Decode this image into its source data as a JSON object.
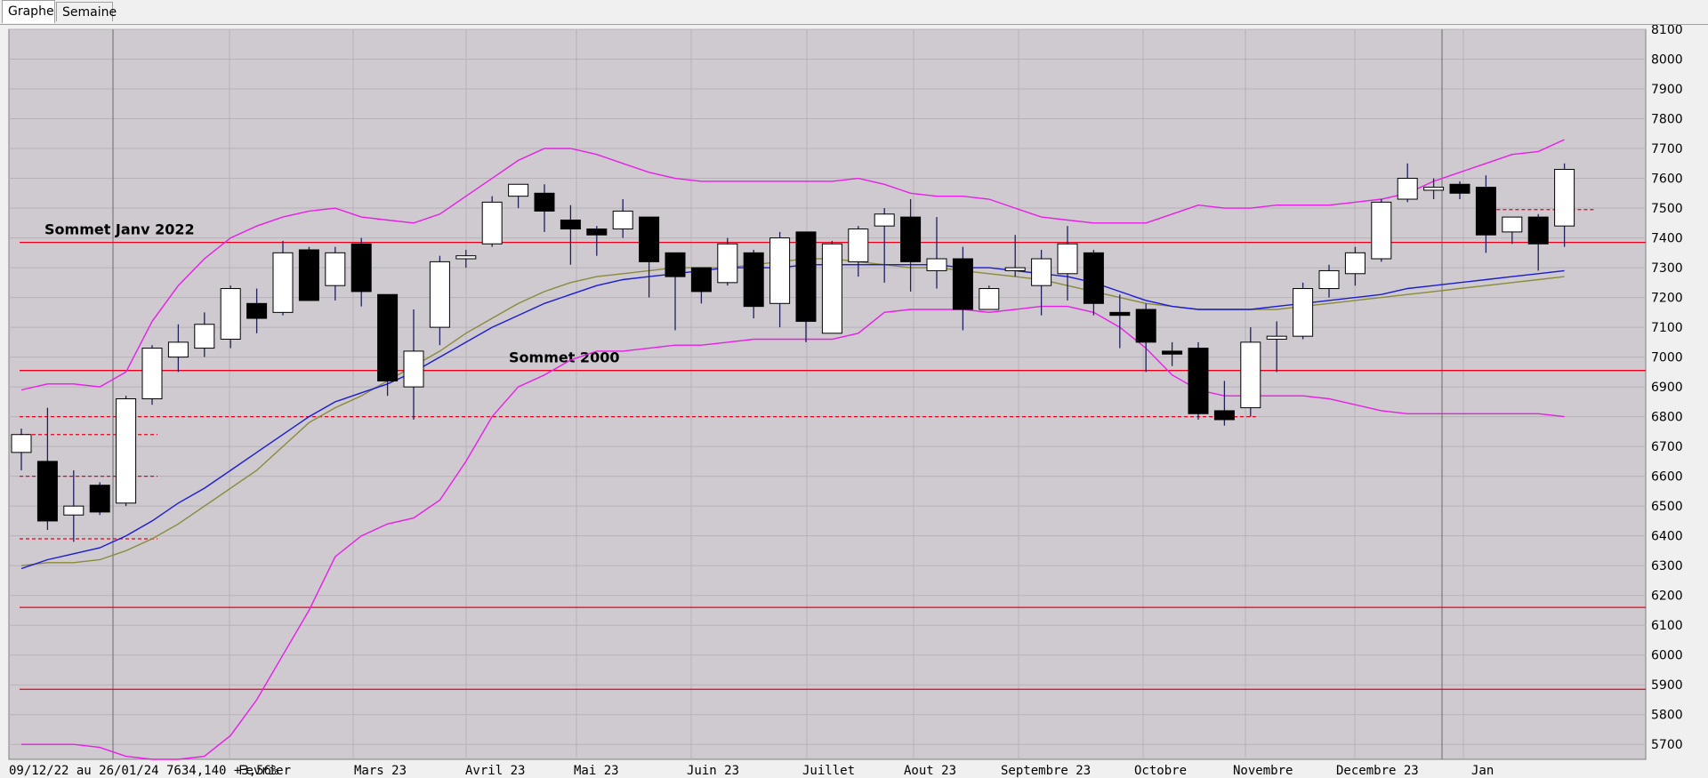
{
  "tabs": [
    {
      "label": "Graphe",
      "active": true
    },
    {
      "label": "Semaine",
      "active": false
    }
  ],
  "footer": {
    "range": "09/12/22 au 26/01/24",
    "last": "7634,140",
    "change": "+3,56%"
  },
  "colors": {
    "background": "#cfcad0",
    "grid": "#b6b2b8",
    "up_candle": "#ffffff",
    "down_candle": "#000000",
    "horizontal_line": "#e8001c",
    "bollinger": "#e81ee8",
    "ma_blue": "#1a1ad8",
    "ma_olive": "#8a8a3a"
  },
  "chart_data": {
    "type": "candlestick",
    "title": "",
    "ylim": [
      5650,
      8100
    ],
    "y_ticks": [
      5700,
      5800,
      5900,
      6000,
      6100,
      6200,
      6300,
      6400,
      6500,
      6600,
      6700,
      6800,
      6900,
      7000,
      7100,
      7200,
      7300,
      7400,
      7500,
      7600,
      7700,
      7800,
      7900,
      8000,
      8100
    ],
    "y_axis_side": "right",
    "grid": true,
    "month_labels": [
      "Fevrier",
      "Mars 23",
      "Avril 23",
      "Mai 23",
      "Juin 23",
      "Juillet",
      "Aout 23",
      "Septembre 23",
      "Octobre",
      "Novembre",
      "Decembre 23",
      "Jan"
    ],
    "candles": [
      {
        "o": 6680,
        "h": 6760,
        "l": 6620,
        "c": 6740
      },
      {
        "o": 6650,
        "h": 6830,
        "l": 6420,
        "c": 6450
      },
      {
        "o": 6470,
        "h": 6620,
        "l": 6380,
        "c": 6500
      },
      {
        "o": 6570,
        "h": 6580,
        "l": 6470,
        "c": 6480
      },
      {
        "o": 6510,
        "h": 6870,
        "l": 6500,
        "c": 6860
      },
      {
        "o": 6860,
        "h": 7040,
        "l": 6840,
        "c": 7030
      },
      {
        "o": 7000,
        "h": 7110,
        "l": 6950,
        "c": 7050
      },
      {
        "o": 7030,
        "h": 7150,
        "l": 7000,
        "c": 7110
      },
      {
        "o": 7060,
        "h": 7240,
        "l": 7030,
        "c": 7230
      },
      {
        "o": 7180,
        "h": 7230,
        "l": 7080,
        "c": 7130
      },
      {
        "o": 7150,
        "h": 7390,
        "l": 7140,
        "c": 7350
      },
      {
        "o": 7360,
        "h": 7370,
        "l": 7190,
        "c": 7190
      },
      {
        "o": 7240,
        "h": 7370,
        "l": 7190,
        "c": 7350
      },
      {
        "o": 7380,
        "h": 7400,
        "l": 7170,
        "c": 7220
      },
      {
        "o": 7210,
        "h": 7210,
        "l": 6870,
        "c": 6920
      },
      {
        "o": 6900,
        "h": 7160,
        "l": 6790,
        "c": 7020
      },
      {
        "o": 7100,
        "h": 7340,
        "l": 7040,
        "c": 7320
      },
      {
        "o": 7330,
        "h": 7360,
        "l": 7300,
        "c": 7340
      },
      {
        "o": 7380,
        "h": 7540,
        "l": 7370,
        "c": 7520
      },
      {
        "o": 7540,
        "h": 7580,
        "l": 7500,
        "c": 7580
      },
      {
        "o": 7550,
        "h": 7580,
        "l": 7420,
        "c": 7490
      },
      {
        "o": 7460,
        "h": 7510,
        "l": 7310,
        "c": 7430
      },
      {
        "o": 7430,
        "h": 7440,
        "l": 7340,
        "c": 7410
      },
      {
        "o": 7430,
        "h": 7530,
        "l": 7400,
        "c": 7490
      },
      {
        "o": 7470,
        "h": 7470,
        "l": 7200,
        "c": 7320
      },
      {
        "o": 7350,
        "h": 7350,
        "l": 7090,
        "c": 7270
      },
      {
        "o": 7300,
        "h": 7300,
        "l": 7180,
        "c": 7220
      },
      {
        "o": 7250,
        "h": 7400,
        "l": 7240,
        "c": 7380
      },
      {
        "o": 7350,
        "h": 7360,
        "l": 7130,
        "c": 7170
      },
      {
        "o": 7180,
        "h": 7420,
        "l": 7100,
        "c": 7400
      },
      {
        "o": 7420,
        "h": 7420,
        "l": 7050,
        "c": 7120
      },
      {
        "o": 7080,
        "h": 7390,
        "l": 7080,
        "c": 7380
      },
      {
        "o": 7320,
        "h": 7440,
        "l": 7270,
        "c": 7430
      },
      {
        "o": 7440,
        "h": 7500,
        "l": 7250,
        "c": 7480
      },
      {
        "o": 7470,
        "h": 7530,
        "l": 7220,
        "c": 7320
      },
      {
        "o": 7290,
        "h": 7470,
        "l": 7230,
        "c": 7330
      },
      {
        "o": 7330,
        "h": 7370,
        "l": 7090,
        "c": 7160
      },
      {
        "o": 7160,
        "h": 7240,
        "l": 7160,
        "c": 7230
      },
      {
        "o": 7290,
        "h": 7410,
        "l": 7270,
        "c": 7300
      },
      {
        "o": 7240,
        "h": 7360,
        "l": 7140,
        "c": 7330
      },
      {
        "o": 7280,
        "h": 7440,
        "l": 7190,
        "c": 7380
      },
      {
        "o": 7350,
        "h": 7360,
        "l": 7140,
        "c": 7180
      },
      {
        "o": 7150,
        "h": 7210,
        "l": 7030,
        "c": 7140
      },
      {
        "o": 7160,
        "h": 7180,
        "l": 6950,
        "c": 7050
      },
      {
        "o": 7020,
        "h": 7050,
        "l": 6970,
        "c": 7010
      },
      {
        "o": 7030,
        "h": 7050,
        "l": 6790,
        "c": 6810
      },
      {
        "o": 6820,
        "h": 6920,
        "l": 6770,
        "c": 6790
      },
      {
        "o": 6830,
        "h": 7100,
        "l": 6800,
        "c": 7050
      },
      {
        "o": 7060,
        "h": 7120,
        "l": 6950,
        "c": 7070
      },
      {
        "o": 7070,
        "h": 7250,
        "l": 7060,
        "c": 7230
      },
      {
        "o": 7230,
        "h": 7310,
        "l": 7200,
        "c": 7290
      },
      {
        "o": 7280,
        "h": 7370,
        "l": 7240,
        "c": 7350
      },
      {
        "o": 7330,
        "h": 7530,
        "l": 7320,
        "c": 7520
      },
      {
        "o": 7530,
        "h": 7650,
        "l": 7520,
        "c": 7600
      },
      {
        "o": 7560,
        "h": 7600,
        "l": 7530,
        "c": 7570
      },
      {
        "o": 7580,
        "h": 7590,
        "l": 7530,
        "c": 7550
      },
      {
        "o": 7570,
        "h": 7610,
        "l": 7350,
        "c": 7410
      },
      {
        "o": 7420,
        "h": 7470,
        "l": 7380,
        "c": 7470
      },
      {
        "o": 7470,
        "h": 7480,
        "l": 7290,
        "c": 7380
      },
      {
        "o": 7440,
        "h": 7650,
        "l": 7370,
        "c": 7630
      }
    ],
    "horizontal_lines": [
      {
        "value": 7385,
        "label": "Sommet Janv 2022",
        "style": "solid"
      },
      {
        "value": 6955,
        "label": "Sommet 2000",
        "style": "solid"
      },
      {
        "value": 6160,
        "label": "",
        "style": "solid"
      },
      {
        "value": 5885,
        "label": "",
        "style": "solid"
      }
    ],
    "bollinger_upper": [
      [
        6890,
        6910,
        6910,
        6900,
        6950,
        7120,
        7240,
        7330,
        7400,
        7440,
        7470,
        7490,
        7500,
        7470,
        7460,
        7450,
        7480,
        7540,
        7600,
        7660,
        7700,
        7700,
        7680,
        7650,
        7620,
        7600,
        7590,
        7590,
        7590,
        7590,
        7590,
        7590,
        7600,
        7580,
        7550,
        7540,
        7540,
        7530,
        7500,
        7470,
        7460,
        7450,
        7450,
        7450,
        7480,
        7510,
        7500,
        7500,
        7510,
        7510,
        7510,
        7520,
        7530,
        7550,
        7590,
        7620,
        7650,
        7680,
        7690,
        7730
      ]
    ],
    "bollinger_lower": [
      [
        5700,
        5700,
        5700,
        5690,
        5660,
        5650,
        5650,
        5660,
        5730,
        5850,
        6000,
        6150,
        6330,
        6400,
        6440,
        6460,
        6520,
        6650,
        6800,
        6900,
        6940,
        6990,
        7020,
        7020,
        7030,
        7040,
        7040,
        7050,
        7060,
        7060,
        7060,
        7060,
        7080,
        7150,
        7160,
        7160,
        7160,
        7150,
        7160,
        7170,
        7170,
        7150,
        7100,
        7030,
        6940,
        6890,
        6870,
        6870,
        6870,
        6870,
        6860,
        6840,
        6820,
        6810,
        6810,
        6810,
        6810,
        6810,
        6810,
        6800
      ]
    ],
    "ma_blue": [
      6290,
      6320,
      6340,
      6360,
      6400,
      6450,
      6510,
      6560,
      6620,
      6680,
      6740,
      6800,
      6850,
      6880,
      6910,
      6950,
      7000,
      7050,
      7100,
      7140,
      7180,
      7210,
      7240,
      7260,
      7270,
      7280,
      7290,
      7300,
      7300,
      7300,
      7310,
      7310,
      7310,
      7310,
      7310,
      7310,
      7300,
      7300,
      7290,
      7280,
      7270,
      7250,
      7220,
      7190,
      7170,
      7160,
      7160,
      7160,
      7170,
      7180,
      7190,
      7200,
      7210,
      7230,
      7240,
      7250,
      7260,
      7270,
      7280,
      7290
    ],
    "ma_olive": [
      6300,
      6310,
      6310,
      6320,
      6350,
      6390,
      6440,
      6500,
      6560,
      6620,
      6700,
      6780,
      6830,
      6870,
      6920,
      6970,
      7020,
      7080,
      7130,
      7180,
      7220,
      7250,
      7270,
      7280,
      7290,
      7300,
      7300,
      7300,
      7310,
      7320,
      7330,
      7330,
      7320,
      7310,
      7300,
      7300,
      7290,
      7280,
      7270,
      7260,
      7240,
      7220,
      7200,
      7180,
      7170,
      7160,
      7160,
      7160,
      7160,
      7170,
      7180,
      7190,
      7200,
      7210,
      7220,
      7230,
      7240,
      7250,
      7260,
      7270
    ],
    "dashed_levels": [
      {
        "value": 6800,
        "from": 0,
        "to": 47
      },
      {
        "value": 6740,
        "from": 0,
        "to": 5
      },
      {
        "value": 6600,
        "from": 0,
        "to": 5
      },
      {
        "value": 6390,
        "from": 0,
        "to": 5
      },
      {
        "value": 7495,
        "from": 56,
        "to": 60
      }
    ]
  }
}
